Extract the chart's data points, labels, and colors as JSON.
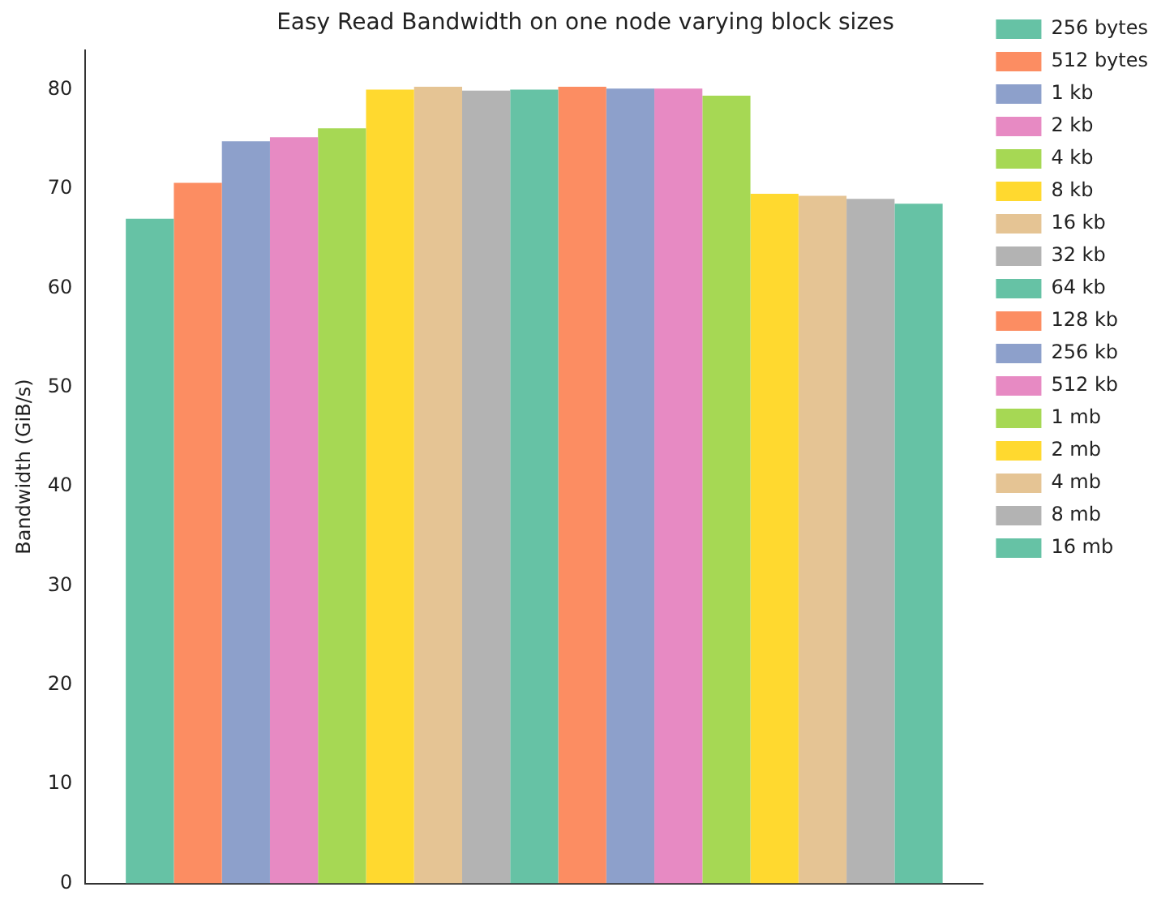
{
  "chart_data": {
    "type": "bar",
    "title": "Easy Read Bandwidth on one node varying block sizes",
    "ylabel": "Bandwidth (GiB/s)",
    "categories": [
      null
    ],
    "ylim": [
      0,
      84
    ],
    "yticks": [
      0,
      10,
      20,
      30,
      40,
      50,
      60,
      70,
      80
    ],
    "grid": false,
    "legend": "right",
    "tick_labels": "y",
    "series": [
      {
        "name": "256 bytes",
        "color": "#66c2a5",
        "values": [
          67.0
        ]
      },
      {
        "name": "512 bytes",
        "color": "#fc8d62",
        "values": [
          70.6
        ]
      },
      {
        "name": "1 kb",
        "color": "#8da0cb",
        "values": [
          74.8
        ]
      },
      {
        "name": "2 kb",
        "color": "#e78ac3",
        "values": [
          75.2
        ]
      },
      {
        "name": "4 kb",
        "color": "#a6d854",
        "values": [
          76.1
        ]
      },
      {
        "name": "8 kb",
        "color": "#ffd92f",
        "values": [
          80.0
        ]
      },
      {
        "name": "16 kb",
        "color": "#e5c494",
        "values": [
          80.3
        ]
      },
      {
        "name": "32 kb",
        "color": "#b3b3b3",
        "values": [
          79.9
        ]
      },
      {
        "name": "64 kb",
        "color": "#66c2a5",
        "values": [
          80.0
        ]
      },
      {
        "name": "128 kb",
        "color": "#fc8d62",
        "values": [
          80.3
        ]
      },
      {
        "name": "256 kb",
        "color": "#8da0cb",
        "values": [
          80.1
        ]
      },
      {
        "name": "512 kb",
        "color": "#e78ac3",
        "values": [
          80.1
        ]
      },
      {
        "name": "1 mb",
        "color": "#a6d854",
        "values": [
          79.4
        ]
      },
      {
        "name": "2 mb",
        "color": "#ffd92f",
        "values": [
          69.5
        ]
      },
      {
        "name": "4 mb",
        "color": "#e5c494",
        "values": [
          69.3
        ]
      },
      {
        "name": "8 mb",
        "color": "#b3b3b3",
        "values": [
          69.0
        ]
      },
      {
        "name": "16 mb",
        "color": "#66c2a5",
        "values": [
          68.5
        ]
      }
    ]
  }
}
